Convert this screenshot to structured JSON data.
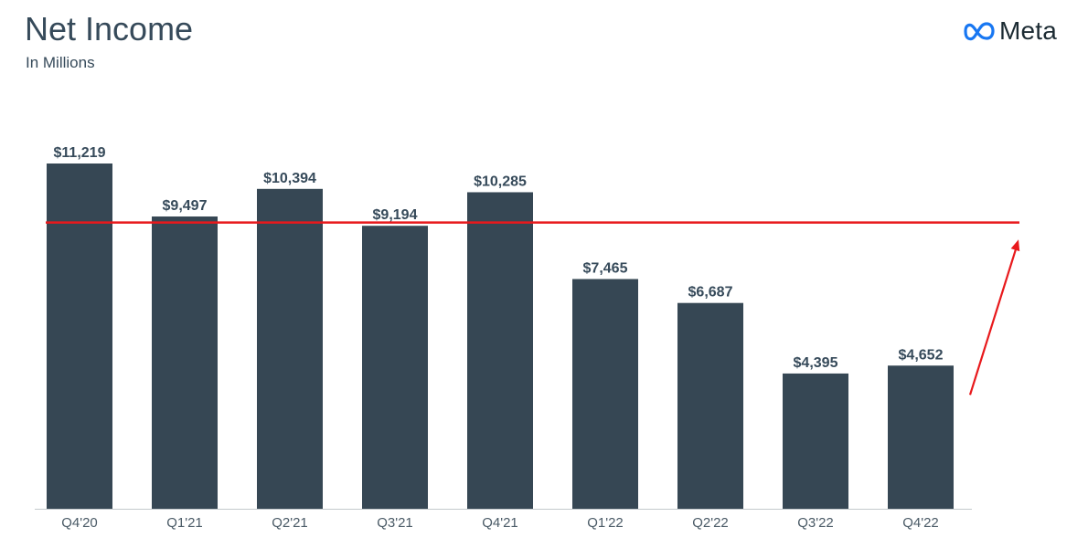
{
  "header": {
    "title": "Net Income",
    "subtitle": "In Millions"
  },
  "brand": {
    "name": "Meta",
    "icon": "meta-infinity-logo",
    "color": "#1877f2"
  },
  "colors": {
    "bar": "#364754",
    "annotation": "#e8191c",
    "text": "#364a5a"
  },
  "chart_data": {
    "type": "bar",
    "title": "Net Income",
    "subtitle": "In Millions",
    "categories": [
      "Q4'20",
      "Q1'21",
      "Q2'21",
      "Q3'21",
      "Q4'21",
      "Q1'22",
      "Q2'22",
      "Q3'22",
      "Q4'22"
    ],
    "values": [
      11219,
      9497,
      10394,
      9194,
      10285,
      7465,
      6687,
      4395,
      4652
    ],
    "value_labels": [
      "$11,219",
      "$9,497",
      "$10,394",
      "$9,194",
      "$10,285",
      "$7,465",
      "$6,687",
      "$4,395",
      "$4,652"
    ],
    "ylim": [
      0,
      11219
    ],
    "grid": false,
    "legend": "none",
    "annotations": {
      "horizontal_line_value": 9300,
      "arrow": {
        "from_value": 3700,
        "to_value": 8750,
        "placement": "right of last bar",
        "direction": "up"
      }
    }
  }
}
